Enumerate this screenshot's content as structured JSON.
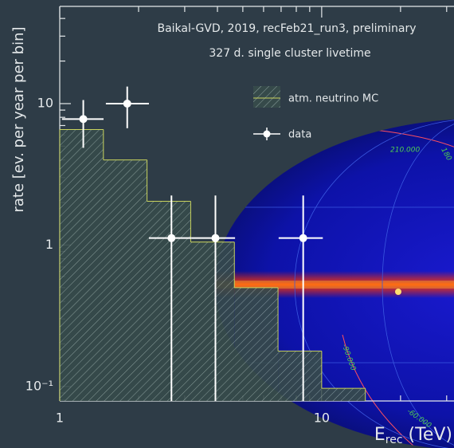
{
  "chart_data": {
    "type": "histogram",
    "title": "Baikal-GVD, 2019, recFeb21_run3, preliminary",
    "subtitle": "327 d. single cluster livetime",
    "xlabel": {
      "main": "E",
      "sub": "rec",
      "unit": " (TeV)"
    },
    "ylabel": "rate [ev. per year per bin]",
    "log_x": true,
    "log_y": true,
    "xlim": [
      1,
      32
    ],
    "ylim": [
      0.079,
      48.7
    ],
    "xticks": [
      1,
      10
    ],
    "yticks": [
      {
        "value": 0.1,
        "label": "10⁻¹"
      },
      1,
      10
    ],
    "histogram": {
      "name": "atm. neutrino MC",
      "color": "#c9d35e",
      "bins": [
        1,
        1.468,
        2.154,
        3.162,
        4.642,
        6.813,
        10,
        14.68
      ],
      "counts": [
        6.56,
        4.0,
        2.04,
        1.05,
        0.5,
        0.178,
        0.097
      ]
    },
    "points": {
      "name": "data",
      "color": "#ffffff",
      "x": [
        1.23,
        1.81,
        2.67,
        3.93,
        8.5
      ],
      "values": [
        7.78,
        10,
        1.12,
        1.12,
        1.12
      ],
      "ylow": [
        4.87,
        6.7,
        0,
        0,
        0
      ],
      "yhigh": [
        10.6,
        13.2,
        2.24,
        2.24,
        2.24
      ],
      "xlow": [
        1.02,
        1.5,
        2.19,
        3.18,
        6.85
      ],
      "xhigh": [
        1.47,
        2.19,
        3.18,
        4.67,
        10.1
      ]
    }
  },
  "sky_map": {
    "labels": [
      "210.000",
      "180",
      "-90.000",
      "-60.000"
    ]
  }
}
